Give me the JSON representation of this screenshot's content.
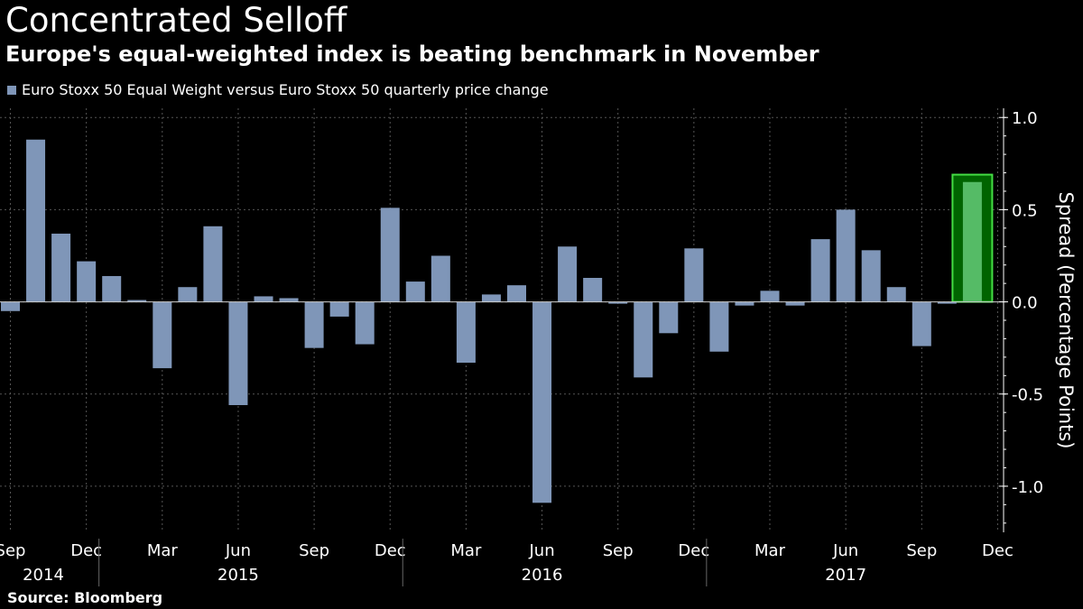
{
  "chart_data": {
    "type": "bar",
    "title": "Concentrated Selloff",
    "subtitle": "Europe's equal-weighted index is beating benchmark in November",
    "series": [
      {
        "name": "Euro Stoxx 50 Equal Weight versus Euro Stoxx 50 quarterly price change",
        "color": "#7f96b8",
        "values": [
          -0.05,
          0.88,
          0.37,
          0.22,
          0.14,
          0.01,
          -0.36,
          0.08,
          0.41,
          -0.56,
          0.03,
          0.02,
          -0.25,
          -0.08,
          -0.23,
          0.51,
          0.11,
          0.25,
          -0.33,
          0.04,
          0.09,
          -1.09,
          0.3,
          0.13,
          -0.01,
          -0.41,
          -0.17,
          0.29,
          -0.27,
          -0.02,
          0.06,
          -0.02,
          0.34,
          0.5,
          0.28,
          0.08,
          -0.24,
          -0.01,
          0.65
        ]
      }
    ],
    "highlight": {
      "index": 38,
      "fill": "#006400",
      "stroke": "#44dd44",
      "bar_color": "#55bb66",
      "top_value": 0.69
    },
    "ylabel": "Spread (Percentage Points)",
    "ylim": [
      -1.25,
      1.05
    ],
    "yticks": [
      "1.0",
      "0.5",
      "0.0",
      "-0.5",
      "-1.0"
    ],
    "yticks_values": [
      1.0,
      0.5,
      0.0,
      -0.5,
      -1.0
    ],
    "x_month_labels": [
      {
        "label": "Sep",
        "index": 0
      },
      {
        "label": "Dec",
        "index": 3
      },
      {
        "label": "Mar",
        "index": 6
      },
      {
        "label": "Jun",
        "index": 9
      },
      {
        "label": "Sep",
        "index": 12
      },
      {
        "label": "Dec",
        "index": 15
      },
      {
        "label": "Mar",
        "index": 18
      },
      {
        "label": "Jun",
        "index": 21
      },
      {
        "label": "Sep",
        "index": 24
      },
      {
        "label": "Dec",
        "index": 27
      },
      {
        "label": "Mar",
        "index": 30
      },
      {
        "label": "Jun",
        "index": 33
      },
      {
        "label": "Sep",
        "index": 36
      },
      {
        "label": "Dec",
        "index": 39
      }
    ],
    "x_year_labels": [
      {
        "label": "2014",
        "from": 0,
        "to": 3
      },
      {
        "label": "2015",
        "from": 3,
        "to": 15
      },
      {
        "label": "2016",
        "from": 15,
        "to": 27
      },
      {
        "label": "2017",
        "from": 27,
        "to": 39
      }
    ],
    "grid": true,
    "legend_position": "top-left",
    "axis_color": "#ffffff",
    "grid_color": "#555555"
  },
  "source": "Source: Bloomberg"
}
